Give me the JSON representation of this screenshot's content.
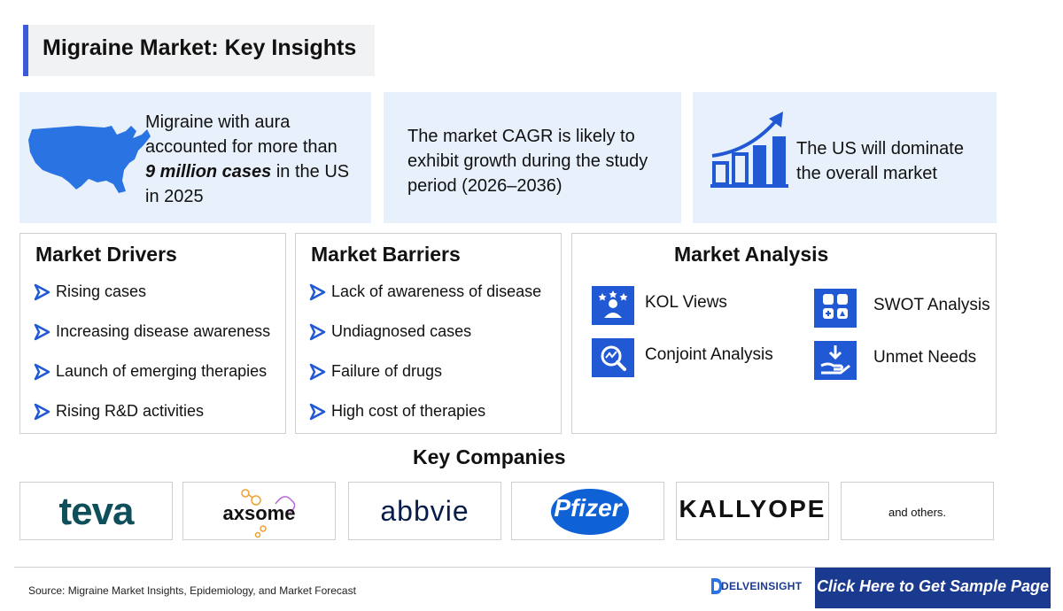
{
  "title": "Migraine Market: Key Insights",
  "insights": {
    "aura": {
      "line1": "Migraine with aura",
      "line2": "accounted for more than",
      "highlight": "9 million cases",
      "line3_rest": " in the US",
      "line4": "in 2025",
      "icon": "usa-map-icon"
    },
    "cagr": {
      "line1": "The market CAGR is likely to",
      "line2": "exhibit growth during the study",
      "line3": "period (2026–2036)"
    },
    "us": {
      "line1": "The US will dominate",
      "line2": "the overall market",
      "icon": "growth-chart-icon"
    }
  },
  "drivers": {
    "heading": "Market Drivers",
    "items": [
      "Rising cases",
      "Increasing disease awareness",
      "Launch of emerging therapies",
      "Rising R&D activities"
    ]
  },
  "barriers": {
    "heading": "Market Barriers",
    "items": [
      "Lack of awareness of disease",
      "Undiagnosed cases",
      "Failure of drugs",
      "High cost of therapies"
    ]
  },
  "analysis": {
    "heading": "Market Analysis",
    "items": [
      {
        "label": "KOL Views",
        "icon": "kol-icon"
      },
      {
        "label": "SWOT Analysis",
        "icon": "swot-icon"
      },
      {
        "label": "Conjoint Analysis",
        "icon": "conjoint-icon"
      },
      {
        "label": "Unmet Needs",
        "icon": "unmet-needs-icon"
      }
    ]
  },
  "companies": {
    "heading": "Key Companies",
    "logos": [
      "teva",
      "axsome",
      "abbvie",
      "Pfizer",
      "KALLYOPE"
    ],
    "others": "and others."
  },
  "footer": {
    "source": "Source: Migraine Market Insights, Epidemiology, and Market Forecast",
    "brand": "DELVEINSIGHT",
    "cta": "Click Here to Get Sample Page"
  },
  "colors": {
    "accent": "#3b5bdb",
    "icon_blue": "#2158d4",
    "panel_bg": "#e8f1fb",
    "cta_bg": "#1a3a8f",
    "teva": "#0f4f5c"
  }
}
